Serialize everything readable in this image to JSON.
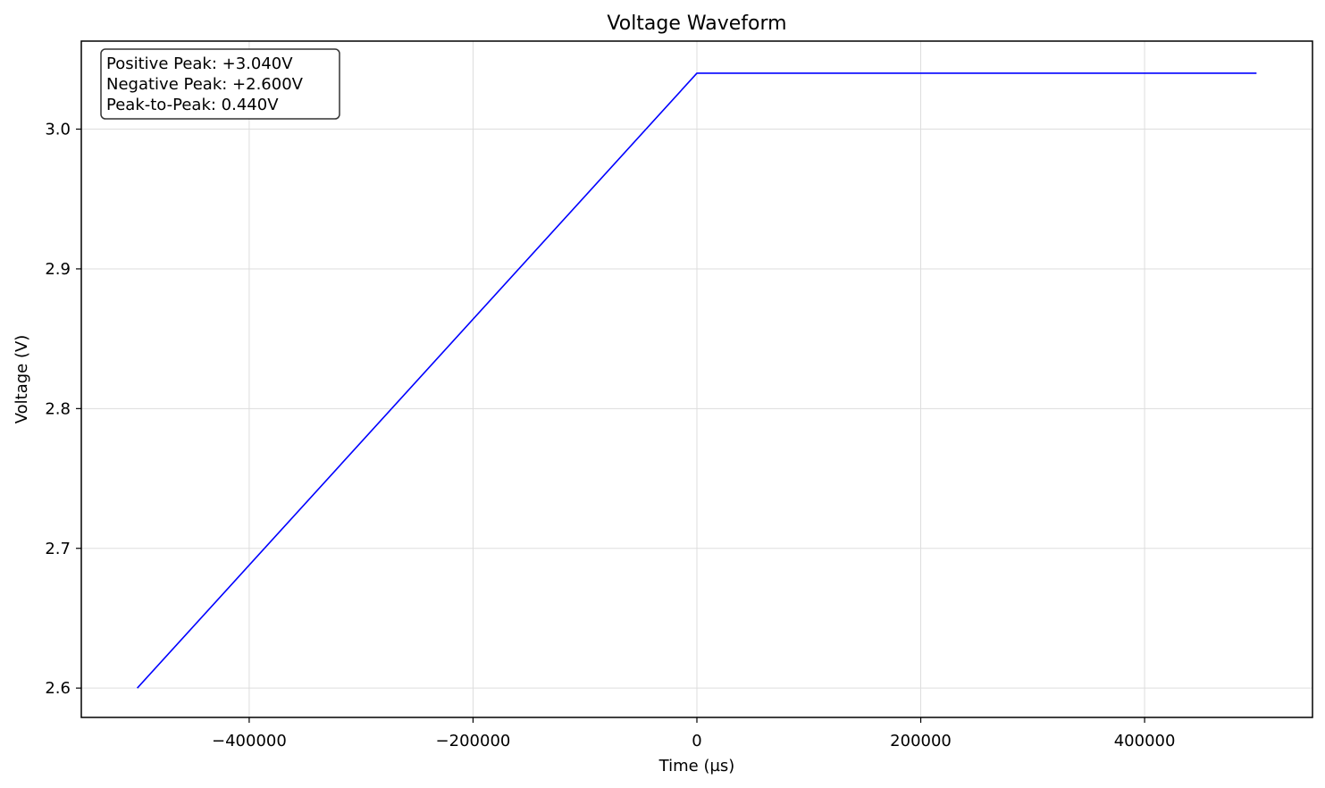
{
  "chart_data": {
    "type": "line",
    "title": "Voltage Waveform",
    "xlabel": "Time (µs)",
    "ylabel": "Voltage (V)",
    "xlim": [
      -550000,
      550000
    ],
    "ylim": [
      2.579,
      3.063
    ],
    "xticks": [
      -400000,
      -200000,
      0,
      200000,
      400000
    ],
    "xtick_labels": [
      "−400000",
      "−200000",
      "0",
      "200000",
      "400000"
    ],
    "yticks": [
      2.6,
      2.7,
      2.8,
      2.9,
      3.0
    ],
    "ytick_labels": [
      "2.6",
      "2.7",
      "2.8",
      "2.9",
      "3.0"
    ],
    "grid": true,
    "series": [
      {
        "color": "#0000ff",
        "x": [
          -500000,
          0,
          500000
        ],
        "y": [
          2.6,
          3.04,
          3.04
        ]
      }
    ],
    "annotation": {
      "lines": [
        "Positive Peak: +3.040V",
        "Negative Peak: +2.600V",
        "Peak-to-Peak: 0.440V"
      ],
      "placement": "top-left"
    }
  }
}
